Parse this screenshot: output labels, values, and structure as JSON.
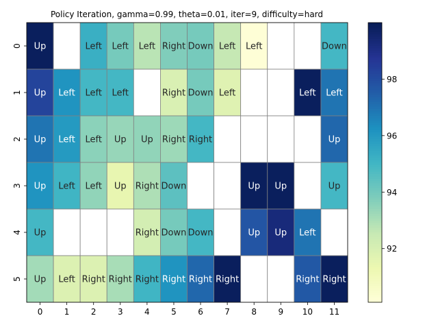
{
  "chart_data": {
    "type": "heatmap",
    "title": "Policy Iteration, gamma=0.99, theta=0.01, iter=9, difficulty=hard",
    "xlabel": "",
    "ylabel": "",
    "x_ticks": [
      "0",
      "1",
      "2",
      "3",
      "4",
      "5",
      "6",
      "7",
      "8",
      "9",
      "10",
      "11"
    ],
    "y_ticks": [
      "0",
      "1",
      "2",
      "3",
      "4",
      "5"
    ],
    "values": [
      [
        99.9,
        null,
        95.3,
        94.0,
        92.8,
        93.8,
        94.0,
        92.6,
        90.2,
        null,
        null,
        95.0
      ],
      [
        98.3,
        96.2,
        95.0,
        95.0,
        null,
        92.0,
        94.0,
        91.8,
        null,
        null,
        99.9,
        97.0
      ],
      [
        97.0,
        96.0,
        93.6,
        93.4,
        93.5,
        93.3,
        95.0,
        null,
        null,
        null,
        null,
        97.3
      ],
      [
        96.2,
        95.1,
        93.5,
        91.5,
        93.0,
        94.5,
        null,
        null,
        99.9,
        99.9,
        null,
        95.0
      ],
      [
        95.0,
        null,
        null,
        null,
        92.2,
        94.0,
        95.0,
        null,
        97.8,
        99.3,
        97.0,
        null
      ],
      [
        93.2,
        91.9,
        91.9,
        93.1,
        95.1,
        96.2,
        97.3,
        99.9,
        null,
        null,
        97.7,
        99.9
      ]
    ],
    "actions": [
      [
        "Up",
        "",
        "Left",
        "Left",
        "Left",
        "Right",
        "Down",
        "Left",
        "Left",
        "",
        "",
        "Down"
      ],
      [
        "Up",
        "Left",
        "Left",
        "Left",
        "",
        "Right",
        "Down",
        "Left",
        "",
        "",
        "Left",
        "Left"
      ],
      [
        "Up",
        "Left",
        "Left",
        "Up",
        "Up",
        "Right",
        "Right",
        "",
        "",
        "",
        "",
        "Up"
      ],
      [
        "Up",
        "Left",
        "Left",
        "Up",
        "Right",
        "Down",
        "",
        "",
        "Up",
        "Up",
        "",
        "Up"
      ],
      [
        "Up",
        "",
        "",
        "",
        "Right",
        "Down",
        "Down",
        "",
        "Up",
        "Up",
        "Left",
        ""
      ],
      [
        "Up",
        "Left",
        "Right",
        "Right",
        "Right",
        "Right",
        "Right",
        "Right",
        "",
        "",
        "Right",
        "Right"
      ]
    ],
    "colorbar": {
      "colormap": "YlGnBu",
      "vmin": 90.1,
      "vmax": 100.0,
      "ticks": [
        "92",
        "94",
        "96",
        "98"
      ]
    },
    "grid": true
  }
}
